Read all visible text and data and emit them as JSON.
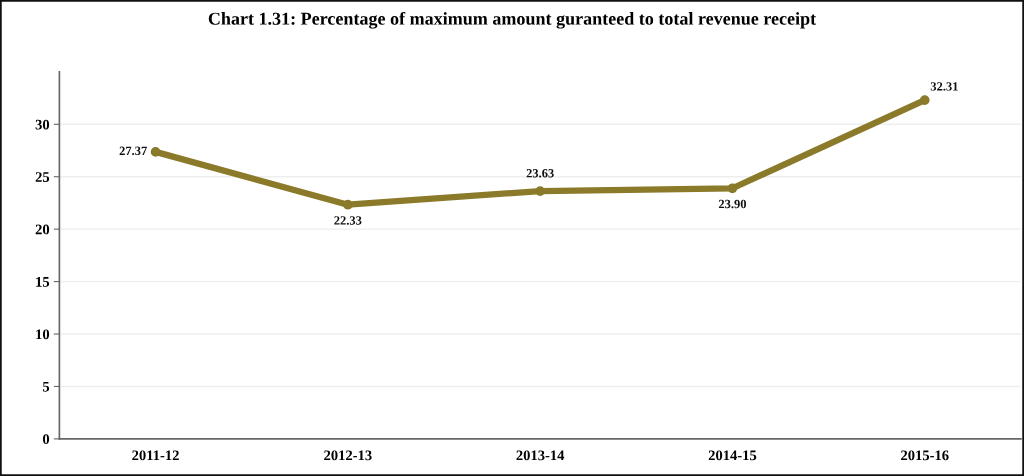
{
  "chart_data": {
    "type": "line",
    "title": "Chart 1.31: Percentage of maximum amount guranteed to total revenue receipt",
    "categories": [
      "2011-12",
      "2012-13",
      "2013-14",
      "2014-15",
      "2015-16"
    ],
    "series": [
      {
        "color": "#8a7a2a",
        "values": [
          27.37,
          22.33,
          23.63,
          23.9,
          32.31
        ]
      }
    ],
    "value_labels": [
      "27.37",
      "22.33",
      "23.63",
      "23.90",
      "32.31"
    ],
    "ylim": [
      0,
      35
    ],
    "yticks": [
      0,
      5,
      10,
      15,
      20,
      25,
      30
    ],
    "grid": "y",
    "legend": false,
    "marker": "circle",
    "line_style": "solid"
  }
}
